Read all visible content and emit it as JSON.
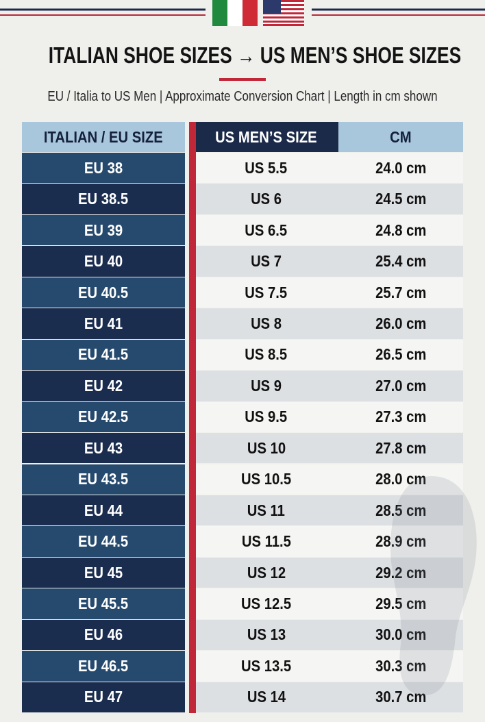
{
  "header": {
    "title": "ITALIAN SHOE SIZES → US MEN’S SHOE SIZES",
    "subtitle": "EU / Italia to US Men | Approximate Conversion Chart | Length in cm shown"
  },
  "table": {
    "columns": [
      "ITALIAN / EU SIZE",
      "US MEN’S SIZE",
      "CM"
    ],
    "rows": [
      [
        "EU 38",
        "US 5.5",
        "24.0 cm"
      ],
      [
        "EU 38.5",
        "US 6",
        "24.5 cm"
      ],
      [
        "EU 39",
        "US 6.5",
        "24.8 cm"
      ],
      [
        "EU 40",
        "US 7",
        "25.4 cm"
      ],
      [
        "EU 40.5",
        "US 7.5",
        "25.7 cm"
      ],
      [
        "EU 41",
        "US 8",
        "26.0 cm"
      ],
      [
        "EU 41.5",
        "US 8.5",
        "26.5 cm"
      ],
      [
        "EU 42",
        "US 9",
        "27.0 cm"
      ],
      [
        "EU 42.5",
        "US 9.5",
        "27.3 cm"
      ],
      [
        "EU 43",
        "US 10",
        "27.8 cm"
      ],
      [
        "EU 43.5",
        "US 10.5",
        "28.0 cm"
      ],
      [
        "EU 44",
        "US 11",
        "28.5 cm"
      ],
      [
        "EU 44.5",
        "US 11.5",
        "28.9 cm"
      ],
      [
        "EU 45",
        "US 12",
        "29.2 cm"
      ],
      [
        "EU 45.5",
        "US 12.5",
        "29.5 cm"
      ],
      [
        "EU 46",
        "US 13",
        "30.0 cm"
      ],
      [
        "EU 46.5",
        "US 13.5",
        "30.3 cm"
      ],
      [
        "EU 47",
        "US 14",
        "30.7 cm"
      ]
    ]
  }
}
